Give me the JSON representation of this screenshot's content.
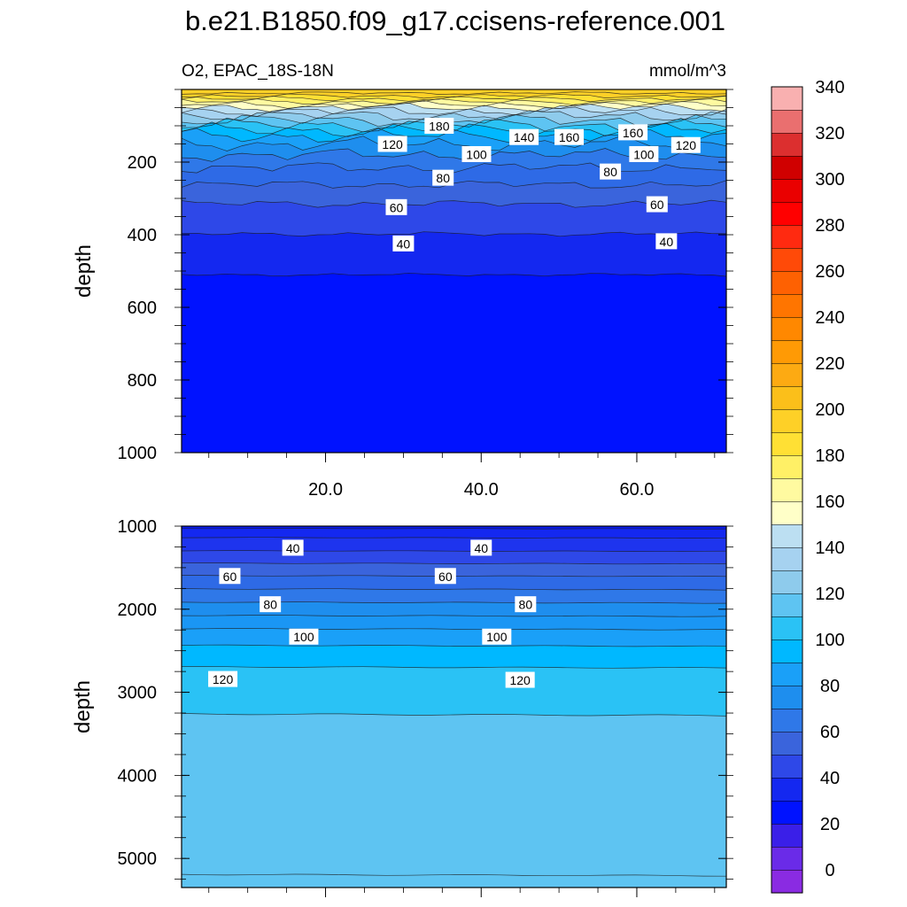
{
  "title": "b.e21.B1850.f09_g17.ccisens-reference.001",
  "chart_data": [
    {
      "type": "heatmap",
      "panel": "upper",
      "left_label": "O2, EPAC_18S-18N",
      "right_label": "mmol/m^3",
      "ylabel": "depth",
      "ylim": [
        1000,
        0
      ],
      "xlim": [
        1.5,
        71.5
      ],
      "y_ticks": [
        200,
        400,
        600,
        800,
        1000
      ],
      "x_ticks": [
        20.0,
        40.0,
        60.0
      ],
      "x_tick_labels": [
        "20.0",
        "40.0",
        "60.0"
      ],
      "contour_labels": [
        {
          "text": "180",
          "x": 34.6,
          "depth": 100
        },
        {
          "text": "120",
          "x": 28.6,
          "depth": 150
        },
        {
          "text": "140",
          "x": 45.5,
          "depth": 131
        },
        {
          "text": "160",
          "x": 51.3,
          "depth": 131
        },
        {
          "text": "160",
          "x": 59.5,
          "depth": 118
        },
        {
          "text": "120",
          "x": 66.3,
          "depth": 153
        },
        {
          "text": "100",
          "x": 39.4,
          "depth": 178
        },
        {
          "text": "100",
          "x": 60.9,
          "depth": 178
        },
        {
          "text": "80",
          "x": 35.1,
          "depth": 243
        },
        {
          "text": "80",
          "x": 56.6,
          "depth": 226
        },
        {
          "text": "60",
          "x": 29.1,
          "depth": 324
        },
        {
          "text": "60",
          "x": 62.6,
          "depth": 316
        },
        {
          "text": "40",
          "x": 30.0,
          "depth": 424
        },
        {
          "text": "40",
          "x": 63.8,
          "depth": 418
        }
      ]
    },
    {
      "type": "heatmap",
      "panel": "lower",
      "ylabel": "depth",
      "ylim": [
        5350,
        1000
      ],
      "xlim": [
        1.5,
        71.5
      ],
      "y_ticks": [
        1000,
        2000,
        3000,
        4000,
        5000
      ],
      "x_ticks": [
        20.0,
        40.0,
        60.0
      ],
      "contour_labels": [
        {
          "text": "40",
          "x": 15.8,
          "depth": 1260
        },
        {
          "text": "40",
          "x": 40.0,
          "depth": 1260
        },
        {
          "text": "60",
          "x": 7.7,
          "depth": 1600
        },
        {
          "text": "60",
          "x": 35.4,
          "depth": 1600
        },
        {
          "text": "80",
          "x": 12.9,
          "depth": 1940
        },
        {
          "text": "80",
          "x": 45.7,
          "depth": 1940
        },
        {
          "text": "100",
          "x": 17.2,
          "depth": 2330
        },
        {
          "text": "100",
          "x": 42.0,
          "depth": 2330
        },
        {
          "text": "120",
          "x": 6.8,
          "depth": 2840
        },
        {
          "text": "120",
          "x": 45.0,
          "depth": 2850
        }
      ]
    }
  ],
  "colorbar": {
    "labels": [
      "0",
      "20",
      "40",
      "60",
      "80",
      "100",
      "120",
      "140",
      "160",
      "180",
      "200",
      "220",
      "240",
      "260",
      "280",
      "300",
      "320",
      "340"
    ],
    "colors": [
      "#8a2be2",
      "#6a2be8",
      "#3a1fe8",
      "#0012ff",
      "#1428f0",
      "#2e48e8",
      "#3a64dc",
      "#2f78e8",
      "#1e8eee",
      "#1aa0f8",
      "#00b8ff",
      "#2ac2f5",
      "#5ec4f2",
      "#8ecbec",
      "#a6d2f0",
      "#bcdff2",
      "#ffffc8",
      "#fffaa0",
      "#fff066",
      "#ffe034",
      "#fed027",
      "#fbbf1a",
      "#fdaa12",
      "#ff9a05",
      "#ff8800",
      "#ff7500",
      "#fe6102",
      "#ff4a08",
      "#ff2a10",
      "#ff0000",
      "#ea0000",
      "#d00000",
      "#dc2f2f",
      "#ea6f6f",
      "#f9b0b0"
    ]
  }
}
